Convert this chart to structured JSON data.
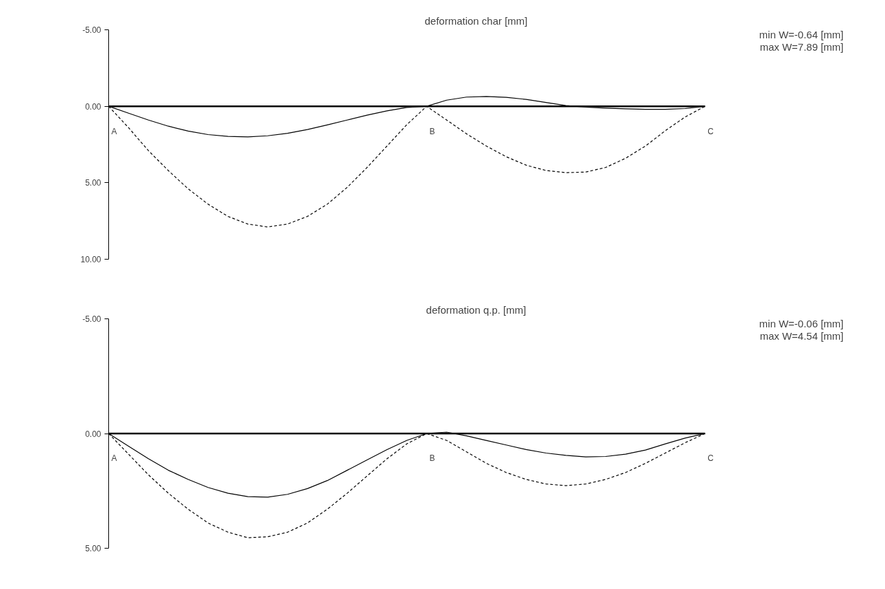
{
  "chart_data": [
    {
      "type": "line",
      "title": "deformation char [mm]",
      "categories": [
        null,
        null,
        null,
        null,
        null,
        null,
        null,
        null,
        null,
        null,
        null,
        null,
        null,
        null,
        null,
        null,
        null,
        null,
        null,
        null,
        null,
        null,
        null,
        null,
        null,
        null,
        null,
        null,
        null,
        null,
        null
      ],
      "series": [
        {
          "color": "#000000",
          "line_style": "solid",
          "values": [
            0,
            0.45,
            0.9,
            1.3,
            1.62,
            1.85,
            1.97,
            2.0,
            1.93,
            1.77,
            1.52,
            1.22,
            0.9,
            0.58,
            0.3,
            0.08,
            0,
            -0.4,
            -0.6,
            -0.64,
            -0.58,
            -0.45,
            -0.25,
            -0.05,
            0.05,
            0.12,
            0.17,
            0.2,
            0.2,
            0.15,
            0
          ]
        },
        {
          "color": "#000000",
          "line_style": "dashed",
          "values": [
            0,
            1.4,
            2.9,
            4.2,
            5.4,
            6.4,
            7.2,
            7.7,
            7.89,
            7.7,
            7.2,
            6.4,
            5.3,
            4.0,
            2.6,
            1.2,
            0,
            0.9,
            1.8,
            2.6,
            3.3,
            3.85,
            4.2,
            4.34,
            4.3,
            4.0,
            3.4,
            2.6,
            1.6,
            0.7,
            0
          ]
        }
      ],
      "ylim": [
        10,
        -5
      ],
      "yticks": [
        {
          "value": -5,
          "label": "-5.00"
        },
        {
          "value": 0,
          "label": "0.00"
        },
        {
          "value": 5,
          "label": "5.00"
        },
        {
          "value": 10,
          "label": "10.00"
        }
      ],
      "ref_lines": [
        {
          "axis": "y",
          "value": 0,
          "color": "#000000"
        }
      ],
      "tick_labels": "y",
      "grid": false,
      "annotations": [
        "min W=-0.64 [mm]",
        "max W=7.89 [mm]",
        "A",
        "B",
        "C"
      ]
    },
    {
      "type": "line",
      "title": "deformation q.p. [mm]",
      "categories": [
        null,
        null,
        null,
        null,
        null,
        null,
        null,
        null,
        null,
        null,
        null,
        null,
        null,
        null,
        null,
        null,
        null,
        null,
        null,
        null,
        null,
        null,
        null,
        null,
        null,
        null,
        null,
        null,
        null,
        null,
        null
      ],
      "series": [
        {
          "color": "#000000",
          "line_style": "solid",
          "values": [
            0,
            0.55,
            1.1,
            1.6,
            2.0,
            2.35,
            2.6,
            2.75,
            2.77,
            2.65,
            2.4,
            2.05,
            1.6,
            1.15,
            0.7,
            0.3,
            0,
            -0.06,
            0.1,
            0.3,
            0.5,
            0.7,
            0.85,
            0.95,
            1.02,
            1.0,
            0.9,
            0.72,
            0.45,
            0.2,
            0
          ]
        },
        {
          "color": "#000000",
          "line_style": "dashed",
          "values": [
            0,
            0.9,
            1.8,
            2.6,
            3.3,
            3.9,
            4.3,
            4.54,
            4.5,
            4.3,
            3.9,
            3.3,
            2.6,
            1.85,
            1.1,
            0.45,
            0,
            0.3,
            0.8,
            1.3,
            1.7,
            2.0,
            2.2,
            2.27,
            2.2,
            2.0,
            1.7,
            1.3,
            0.85,
            0.4,
            0
          ]
        }
      ],
      "ylim": [
        5,
        -5
      ],
      "yticks": [
        {
          "value": -5,
          "label": "-5.00"
        },
        {
          "value": 0,
          "label": "0.00"
        },
        {
          "value": 5,
          "label": "5.00"
        }
      ],
      "ref_lines": [
        {
          "axis": "y",
          "value": 0,
          "color": "#000000"
        }
      ],
      "tick_labels": "y",
      "grid": false,
      "annotations": [
        "min W=-0.06 [mm]",
        "max W=4.54 [mm]",
        "A",
        "B",
        "C"
      ]
    }
  ]
}
